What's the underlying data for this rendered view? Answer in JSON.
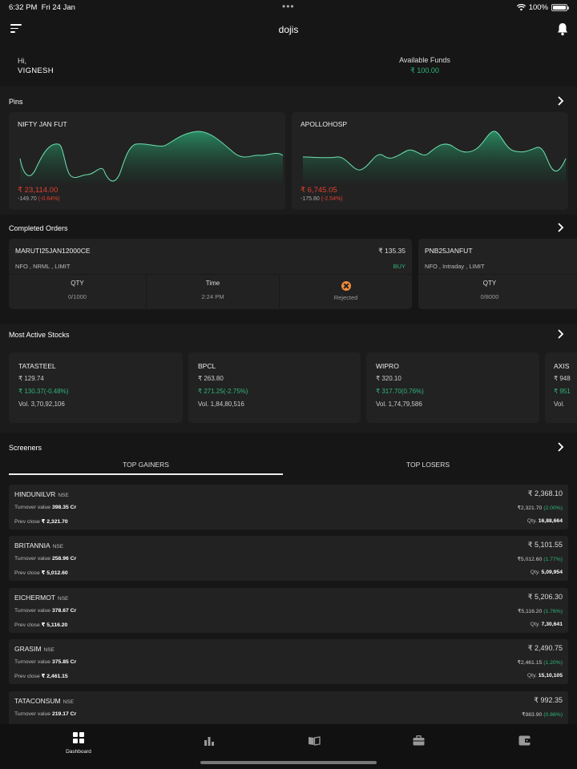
{
  "status_bar": {
    "time": "6:32 PM",
    "date": "Fri 24 Jan",
    "battery": "100%"
  },
  "header": {
    "title": "dojis"
  },
  "greeting": {
    "hi": "Hi,",
    "name": "VIGNESH",
    "funds_label": "Available Funds",
    "funds_value": "₹ 100.00"
  },
  "pins": {
    "title": "Pins",
    "items": [
      {
        "name": "NIFTY JAN FUT",
        "price": "₹ 23,114.00",
        "change_abs": "-149.70",
        "change_pct": "(-0.64%)"
      },
      {
        "name": "APOLLOHOSP",
        "price": "₹ 6,745.05",
        "change_abs": "-175.80",
        "change_pct": "(-2.54%)"
      }
    ]
  },
  "completed_orders": {
    "title": "Completed Orders",
    "items": [
      {
        "symbol": "MARUTI25JAN12000CE",
        "price": "₹ 135.35",
        "desc": "NFO , NRML , LIMIT",
        "side": "BUY",
        "qty_label": "QTY",
        "qty": "0/1000",
        "time_label": "Time",
        "time": "2:24 PM",
        "status": "Rejected"
      },
      {
        "symbol": "PNB25JANFUT",
        "desc": "NFO , Intraday , LIMIT",
        "qty_label": "QTY",
        "qty": "0/8000"
      }
    ]
  },
  "most_active": {
    "title": "Most Active Stocks",
    "items": [
      {
        "name": "TATASTEEL",
        "price": "₹ 129.74",
        "change": "₹ 130.37(-0.48%)",
        "volume": "Vol. 3,70,92,106"
      },
      {
        "name": "BPCL",
        "price": "₹ 263.80",
        "change": "₹ 271.25(-2.75%)",
        "volume": "Vol. 1,84,80,516"
      },
      {
        "name": "WIPRO",
        "price": "₹ 320.10",
        "change": "₹ 317.70(0.76%)",
        "volume": "Vol. 1,74,79,586"
      },
      {
        "name": "AXIS",
        "price": "₹ 948",
        "change": "₹ 951",
        "volume": "Vol."
      }
    ]
  },
  "screeners": {
    "title": "Screeners",
    "tabs": [
      "TOP GAINERS",
      "TOP LOSERS"
    ],
    "active_tab": "TOP GAINERS",
    "rows": [
      {
        "symbol": "HINDUNILVR",
        "exchange": "NSE",
        "ltp": "₹ 2,368.10",
        "turnover_label": "Turnover value",
        "turnover": "398.35 Cr",
        "prev_label": "Prev close",
        "prev": "₹ 2,321.70",
        "chg_price": "₹2,321.70",
        "chg_pct": "(2.00%)",
        "qty_label": "Qty.",
        "qty": "16,88,664"
      },
      {
        "symbol": "BRITANNIA",
        "exchange": "NSE",
        "ltp": "₹ 5,101.55",
        "turnover_label": "Turnover value",
        "turnover": "258.96 Cr",
        "prev_label": "Prev close",
        "prev": "₹ 5,012.60",
        "chg_price": "₹5,012.60",
        "chg_pct": "(1.77%)",
        "qty_label": "Qty.",
        "qty": "5,09,954"
      },
      {
        "symbol": "EICHERMOT",
        "exchange": "NSE",
        "ltp": "₹ 5,206.30",
        "turnover_label": "Turnover value",
        "turnover": "378.67 Cr",
        "prev_label": "Prev close",
        "prev": "₹ 5,116.20",
        "chg_price": "₹5,116.20",
        "chg_pct": "(1.76%)",
        "qty_label": "Qty.",
        "qty": "7,30,641"
      },
      {
        "symbol": "GRASIM",
        "exchange": "NSE",
        "ltp": "₹ 2,490.75",
        "turnover_label": "Turnover value",
        "turnover": "375.85 Cr",
        "prev_label": "Prev close",
        "prev": "₹ 2,461.15",
        "chg_price": "₹2,461.15",
        "chg_pct": "(1.20%)",
        "qty_label": "Qty.",
        "qty": "15,10,105"
      },
      {
        "symbol": "TATACONSUM",
        "exchange": "NSE",
        "ltp": "₹ 992.35",
        "turnover_label": "Turnover value",
        "turnover": "219.17 Cr",
        "chg_price": "₹983.90",
        "chg_pct": "(0.86%)"
      }
    ]
  },
  "bottom_nav": {
    "items": [
      {
        "icon": "dashboard-icon",
        "label": "Dashboard"
      },
      {
        "icon": "bar-chart-icon"
      },
      {
        "icon": "book-icon"
      },
      {
        "icon": "briefcase-icon"
      },
      {
        "icon": "wallet-icon"
      }
    ]
  },
  "colors": {
    "background": "#161616",
    "card": "#222222",
    "green": "#2fb57a",
    "red": "#e0402f",
    "orange": "#f08c3a"
  }
}
